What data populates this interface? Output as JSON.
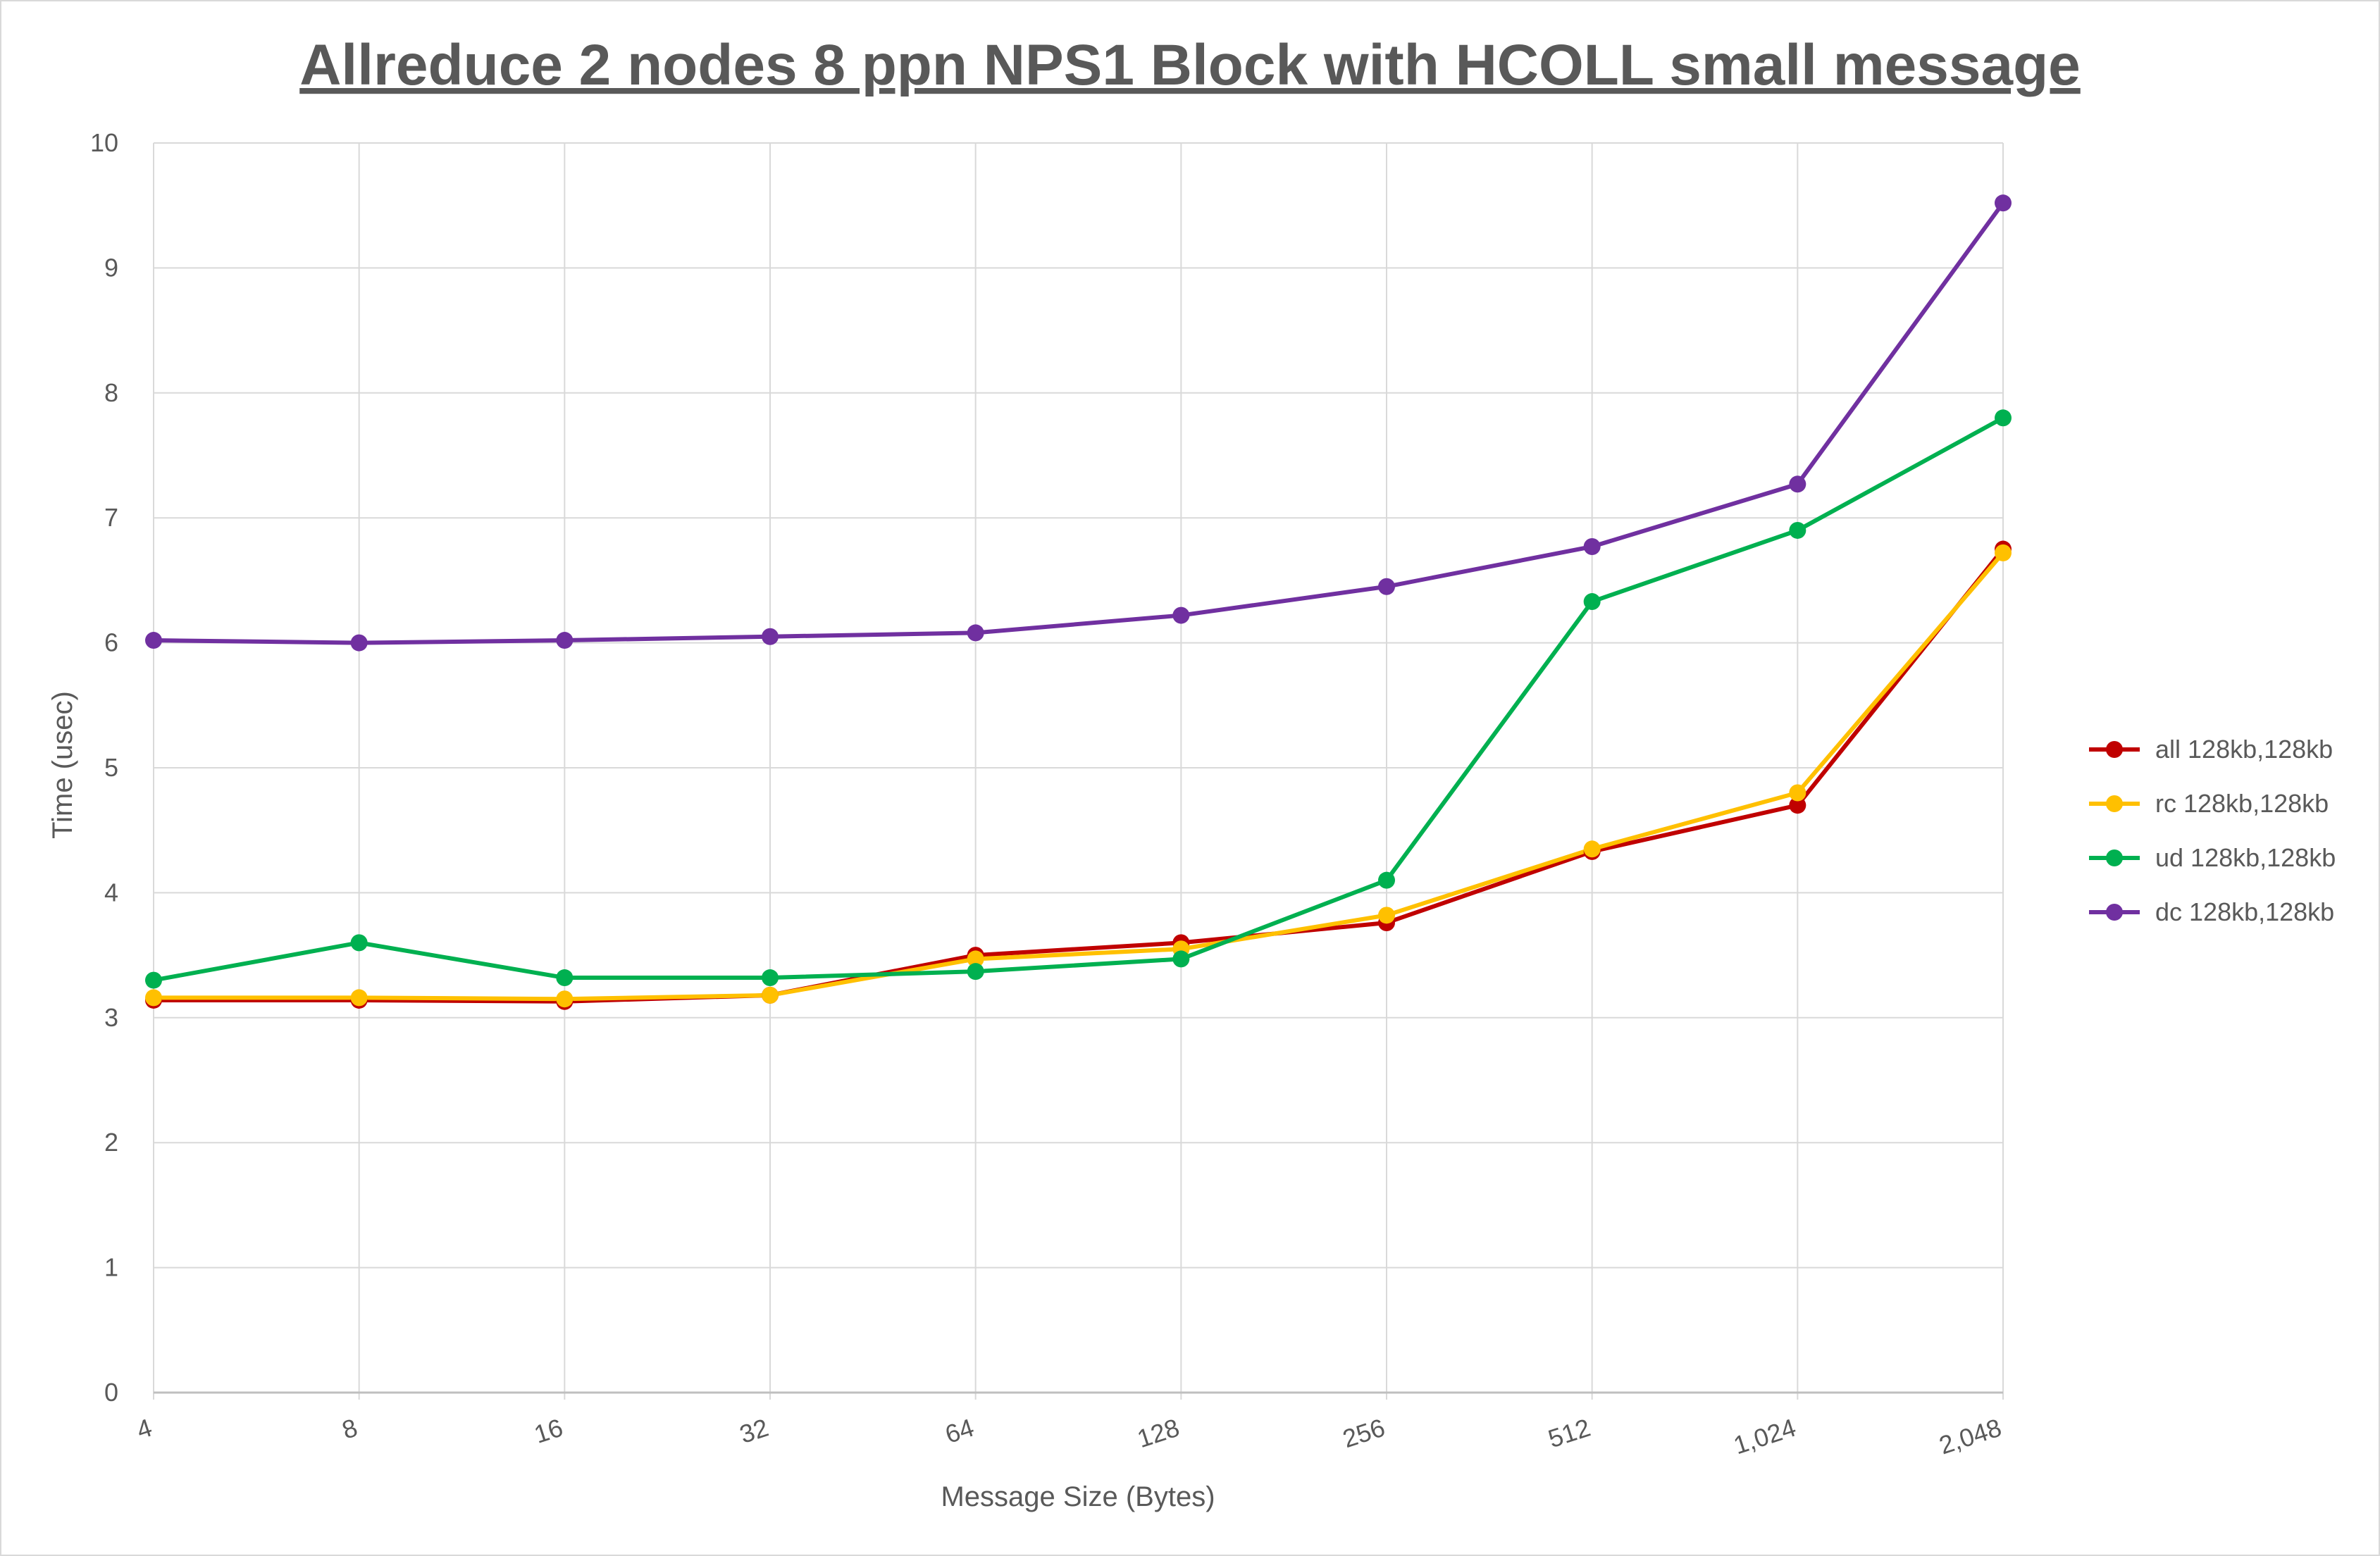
{
  "chart_data": {
    "type": "line",
    "title": "Allreduce 2 nodes 8 ppn NPS1 Block with HCOLL small message",
    "xlabel": "Message Size (Bytes)",
    "ylabel": "Time (usec)",
    "categories": [
      "4",
      "8",
      "16",
      "32",
      "64",
      "128",
      "256",
      "512",
      "1,024",
      "2,048"
    ],
    "y_ticks": [
      "0",
      "1",
      "2",
      "3",
      "4",
      "5",
      "6",
      "7",
      "8",
      "9",
      "10"
    ],
    "ylim": [
      0,
      10
    ],
    "grid": true,
    "legend_position": "right",
    "series": [
      {
        "name": "all 128kb,128kb",
        "color": "#c00000",
        "values": [
          3.14,
          3.14,
          3.13,
          3.18,
          3.5,
          3.6,
          3.76,
          4.33,
          4.7,
          6.75
        ]
      },
      {
        "name": "rc 128kb,128kb",
        "color": "#ffc000",
        "values": [
          3.16,
          3.16,
          3.15,
          3.18,
          3.47,
          3.55,
          3.82,
          4.35,
          4.8,
          6.72
        ]
      },
      {
        "name": "ud 128kb,128kb",
        "color": "#00b050",
        "values": [
          3.3,
          3.6,
          3.32,
          3.32,
          3.37,
          3.47,
          4.1,
          6.33,
          6.9,
          7.8
        ]
      },
      {
        "name": "dc 128kb,128kb",
        "color": "#7030a0",
        "values": [
          6.02,
          6.0,
          6.02,
          6.05,
          6.08,
          6.22,
          6.45,
          6.77,
          7.27,
          9.52
        ]
      }
    ]
  }
}
